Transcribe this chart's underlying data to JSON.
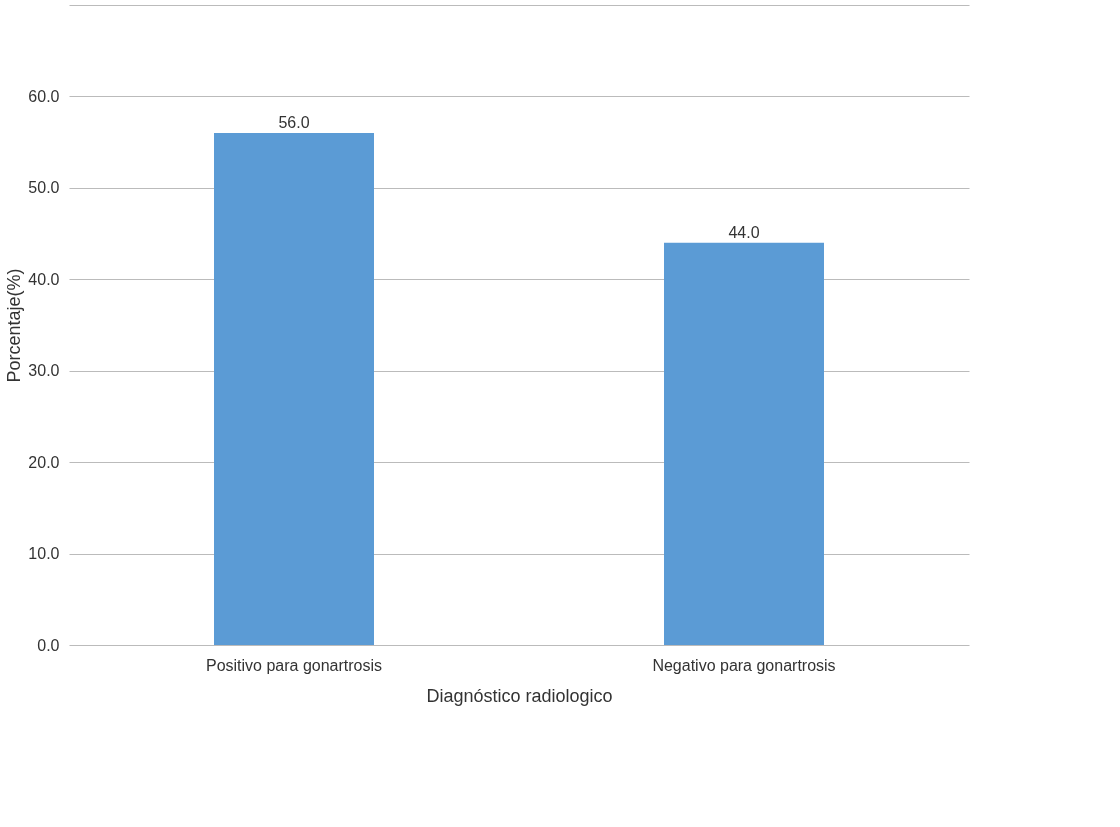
{
  "chart_data": {
    "type": "bar",
    "xlabel": "Diagnóstico radiologico",
    "ylabel": "Porcentaje(%)",
    "categories": [
      "Positivo para gonartrosis",
      "Negativo para gonartrosis"
    ],
    "values": [
      56.0,
      44.0
    ],
    "color": "#5b9bd5",
    "value_labels": [
      "56.0",
      "44.0"
    ],
    "ylim": [
      0,
      70
    ],
    "yticks": [
      {
        "value": 0,
        "label": "0.0"
      },
      {
        "value": 10,
        "label": "10.0"
      },
      {
        "value": 20,
        "label": "20.0"
      },
      {
        "value": 30,
        "label": "30.0"
      },
      {
        "value": 40,
        "label": "40.0"
      },
      {
        "value": 50,
        "label": "50.0"
      },
      {
        "value": 60,
        "label": "60.0"
      },
      {
        "value": 70,
        "label": null
      }
    ],
    "grid": "y"
  }
}
